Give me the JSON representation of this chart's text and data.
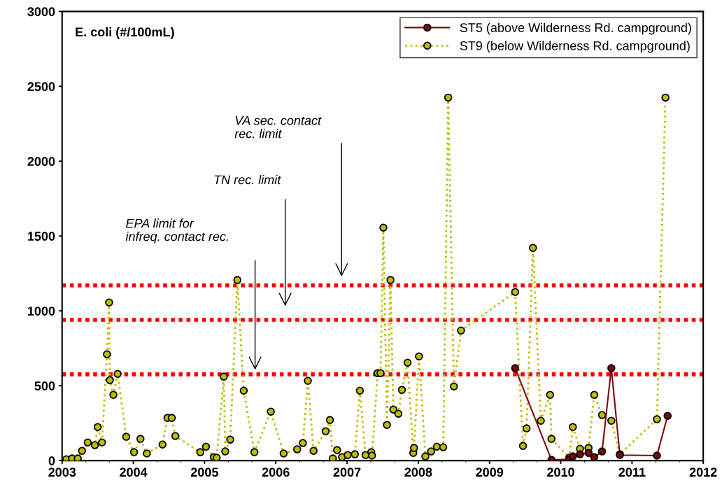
{
  "chart_data": {
    "type": "line",
    "title": "E. coli (#/100mL)",
    "xlim": [
      2003,
      2012
    ],
    "xticks": [
      2003,
      2004,
      2005,
      2006,
      2007,
      2008,
      2009,
      2010,
      2011,
      2012
    ],
    "ylim": [
      0,
      3000
    ],
    "yticks": [
      0,
      500,
      1000,
      1500,
      2000,
      2500,
      3000
    ],
    "grid": false,
    "legend": "top right",
    "marker": "circle",
    "series": [
      {
        "name": "ST5 (above Wilderness Rd. campground)",
        "color": "#7a0a0a",
        "line_style": "solid",
        "x": [
          2009.36,
          2009.87,
          2010.12,
          2010.17,
          2010.27,
          2010.39,
          2010.47,
          2010.58,
          2010.71,
          2010.83,
          2011.35,
          2011.5
        ],
        "values": [
          617,
          5,
          9,
          28,
          42,
          51,
          23,
          61,
          617,
          37,
          33,
          299
        ]
      },
      {
        "name": "ST9 (below Wilderness Rd. campground)",
        "color": "#bcbc00",
        "line_style": "dotted",
        "x": [
          2003.06,
          2003.14,
          2003.22,
          2003.28,
          2003.36,
          2003.46,
          2003.5,
          2003.56,
          2003.63,
          2003.66,
          2003.67,
          2003.72,
          2003.78,
          2003.9,
          2004.01,
          2004.1,
          2004.19,
          2004.41,
          2004.48,
          2004.54,
          2004.59,
          2004.94,
          2005.02,
          2005.13,
          2005.17,
          2005.27,
          2005.29,
          2005.36,
          2005.46,
          2005.55,
          2005.7,
          2005.93,
          2006.11,
          2006.3,
          2006.38,
          2006.45,
          2006.53,
          2006.7,
          2006.76,
          2006.8,
          2006.86,
          2006.93,
          2007.01,
          2007.11,
          2007.18,
          2007.26,
          2007.34,
          2007.35,
          2007.43,
          2007.47,
          2007.51,
          2007.56,
          2007.61,
          2007.65,
          2007.72,
          2007.77,
          2007.85,
          2007.93,
          2007.94,
          2008.01,
          2008.1,
          2008.18,
          2008.26,
          2008.35,
          2008.42,
          2008.5,
          2008.6,
          2009.36,
          2009.47,
          2009.52,
          2009.61,
          2009.72,
          2009.85,
          2009.87,
          2010.12,
          2010.17,
          2010.27,
          2010.39,
          2010.47,
          2010.58,
          2010.71,
          2010.83,
          2011.35,
          2011.47
        ],
        "values": [
          9,
          14,
          14,
          65,
          121,
          103,
          224,
          121,
          710,
          1056,
          537,
          439,
          579,
          159,
          56,
          145,
          47,
          107,
          285,
          285,
          164,
          56,
          93,
          23,
          19,
          561,
          61,
          140,
          1206,
          467,
          56,
          327,
          47,
          75,
          117,
          533,
          65,
          196,
          271,
          14,
          70,
          23,
          37,
          42,
          467,
          37,
          56,
          33,
          584,
          584,
          1556,
          238,
          1206,
          341,
          313,
          472,
          654,
          51,
          84,
          696,
          28,
          61,
          93,
          89,
          2425,
          495,
          869,
          1126,
          98,
          215,
          1421,
          266,
          439,
          145,
          19,
          224,
          79,
          84,
          439,
          304,
          266,
          42,
          276,
          2425
        ]
      }
    ],
    "ref_lines": [
      {
        "axis": "y",
        "value": 576,
        "color": "#ff0000",
        "line_style": "dotted"
      },
      {
        "axis": "y",
        "value": 940,
        "color": "#ff0000",
        "line_style": "dotted"
      },
      {
        "axis": "y",
        "value": 1170,
        "color": "#ff0000",
        "line_style": "dotted"
      }
    ],
    "annotations": [
      "EPA limit for\ninfreq. contact rec.",
      "TN rec. limit",
      "VA sec. contact\nrec. limit"
    ]
  }
}
